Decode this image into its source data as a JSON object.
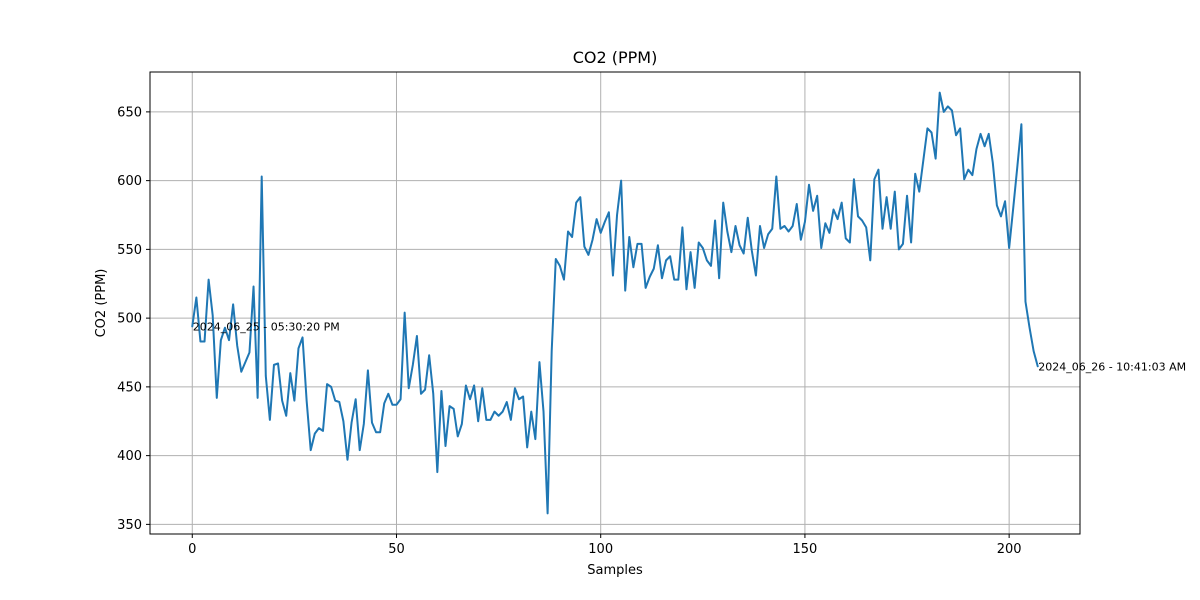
{
  "chart_data": {
    "type": "line",
    "title": "CO2 (PPM)",
    "xlabel": "Samples",
    "ylabel": "CO2 (PPM)",
    "xlim": [
      -10.35,
      217.35
    ],
    "ylim": [
      343,
      679
    ],
    "xticks": [
      0,
      50,
      100,
      150,
      200
    ],
    "yticks": [
      350,
      400,
      450,
      500,
      550,
      600,
      650
    ],
    "grid": true,
    "line_color": "#1f77b4",
    "series": [
      {
        "values": [
          494,
          515,
          483,
          483,
          528,
          502,
          442,
          484,
          493,
          484,
          510,
          480,
          461,
          468,
          475,
          523,
          442,
          603,
          458,
          426,
          466,
          467,
          440,
          429,
          460,
          440,
          478,
          486,
          440,
          404,
          416,
          420,
          418,
          452,
          450,
          440,
          439,
          425,
          397,
          424,
          441,
          404,
          423,
          462,
          424,
          417,
          417,
          438,
          445,
          437,
          437,
          441,
          504,
          449,
          466,
          487,
          445,
          448,
          473,
          445,
          388,
          447,
          407,
          436,
          434,
          414,
          423,
          451,
          441,
          451,
          425,
          449,
          426,
          426,
          432,
          429,
          432,
          439,
          426,
          449,
          441,
          443,
          406,
          432,
          412,
          468,
          432,
          358,
          476,
          543,
          538,
          528,
          563,
          559,
          584,
          588,
          552,
          546,
          557,
          572,
          562,
          570,
          577,
          531,
          575,
          600,
          520,
          559,
          537,
          554,
          554,
          522,
          530,
          536,
          553,
          529,
          542,
          545,
          528,
          528,
          566,
          521,
          548,
          522,
          555,
          551,
          542,
          538,
          571,
          529,
          584,
          563,
          548,
          567,
          553,
          547,
          573,
          549,
          531,
          567,
          551,
          561,
          565,
          603,
          565,
          567,
          563,
          567,
          583,
          557,
          570,
          597,
          578,
          589,
          551,
          569,
          562,
          579,
          572,
          584,
          558,
          555,
          601,
          574,
          571,
          566,
          542,
          601,
          608,
          565,
          588,
          565,
          592,
          550,
          554,
          589,
          555,
          605,
          592,
          615,
          638,
          635,
          616,
          664,
          650,
          654,
          651,
          633,
          638,
          601,
          608,
          604,
          623,
          634,
          625,
          634,
          613,
          582,
          574,
          585,
          551,
          580,
          610,
          641,
          512,
          493,
          476,
          465
        ]
      }
    ],
    "annotations": [
      {
        "text": "2024_06_25 - 05:30:20 PM",
        "x": 0,
        "y": 494
      },
      {
        "text": "2024_06_26 - 10:41:03 AM",
        "x": 207,
        "y": 465
      }
    ]
  }
}
